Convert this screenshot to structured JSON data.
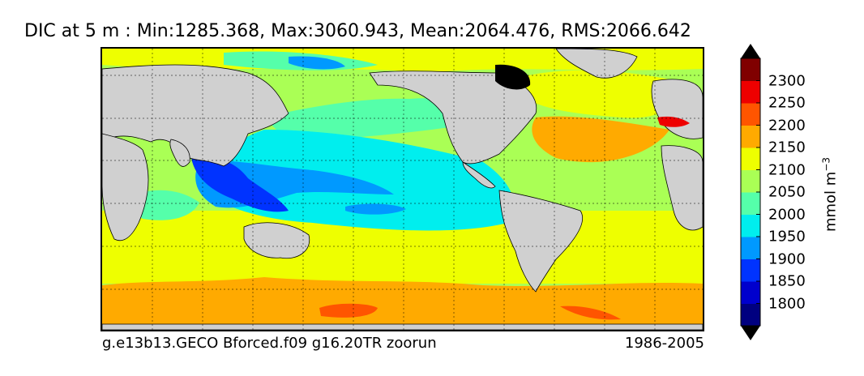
{
  "title": "DIC at 5 m : Min:1285.368, Max:3060.943, Mean:2064.476, RMS:2066.642",
  "footer": {
    "case_name": "g.e13b13.GECO Bforced.f09 g16.20TR zoorun",
    "period": "1986-2005"
  },
  "colorbar": {
    "units_base": "mmol m",
    "units_exponent": "−3",
    "tick_labels": [
      "2300",
      "2250",
      "2200",
      "2150",
      "2100",
      "2050",
      "2000",
      "1950",
      "1900",
      "1850",
      "1800"
    ],
    "colors": [
      "#000080",
      "#0000cd",
      "#0033ff",
      "#0099ff",
      "#00eeee",
      "#55ffaa",
      "#aaff55",
      "#eeff00",
      "#ffaa00",
      "#ff5500",
      "#ee0000",
      "#800000"
    ],
    "levels": [
      1800,
      1850,
      1900,
      1950,
      2000,
      2050,
      2100,
      2150,
      2200,
      2250,
      2300
    ]
  }
}
